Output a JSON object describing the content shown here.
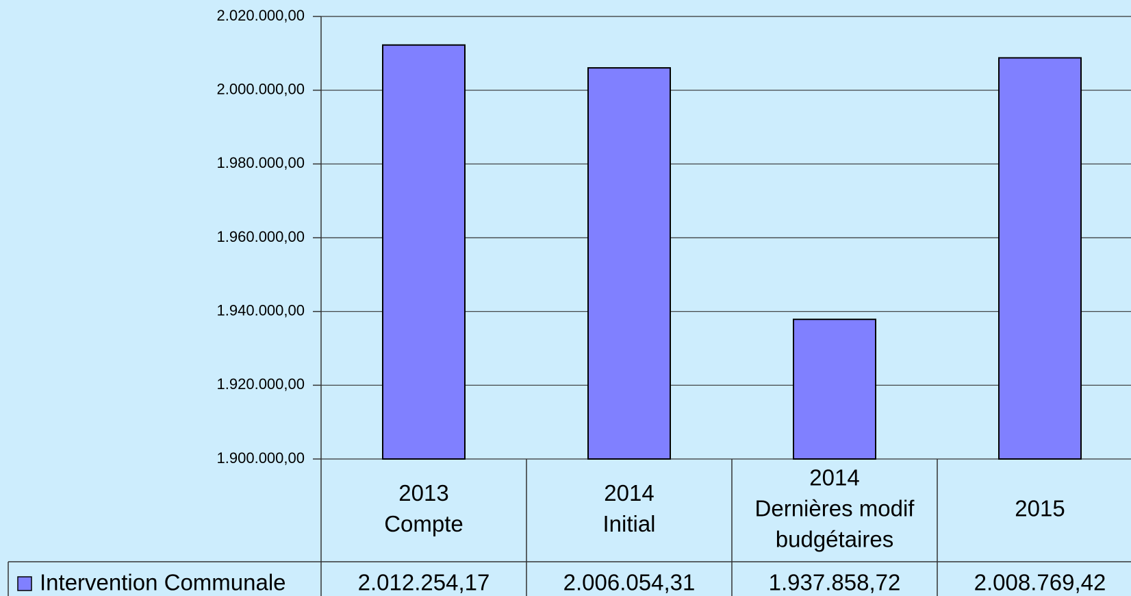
{
  "chart_data": {
    "type": "bar",
    "categories": [
      [
        "2013",
        "Compte"
      ],
      [
        "2014",
        "Initial"
      ],
      [
        "2014",
        "Dernières modif",
        "budgétaires"
      ],
      [
        "2015"
      ]
    ],
    "series": [
      {
        "name": "Intervention Communale",
        "color": "#8080ff",
        "values": [
          2012254.17,
          2006054.31,
          1937858.72,
          2008769.42
        ],
        "value_labels": [
          "2.012.254,17",
          "2.006.054,31",
          "1.937.858,72",
          "2.008.769,42"
        ]
      }
    ],
    "ylim": [
      1900000,
      2020000
    ],
    "yticks": [
      {
        "value": 1900000,
        "label": "1.900.000,00"
      },
      {
        "value": 1920000,
        "label": "1.920.000,00"
      },
      {
        "value": 1940000,
        "label": "1.940.000,00"
      },
      {
        "value": 1960000,
        "label": "1.960.000,00"
      },
      {
        "value": 1980000,
        "label": "1.980.000,00"
      },
      {
        "value": 2000000,
        "label": "2.000.000,00"
      },
      {
        "value": 2020000,
        "label": "2.020.000,00"
      }
    ],
    "grid": true
  }
}
